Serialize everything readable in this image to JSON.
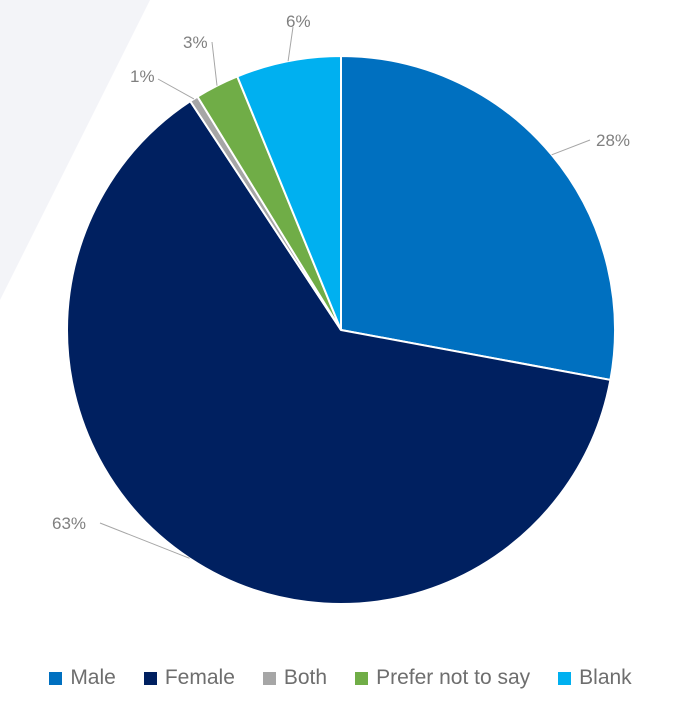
{
  "chart_data": {
    "type": "pie",
    "title": "",
    "slices": [
      {
        "name": "Male",
        "value": 28,
        "label": "28%",
        "color": "#0070C0"
      },
      {
        "name": "Female",
        "value": 63,
        "label": "63%",
        "color": "#002060"
      },
      {
        "name": "Both",
        "value": 0.5,
        "label": "1%",
        "color": "#A6A6A6"
      },
      {
        "name": "Prefer not to say",
        "value": 2.6,
        "label": "3%",
        "color": "#70AD47"
      },
      {
        "name": "Blank",
        "value": 6.2,
        "label": "6%",
        "color": "#00B0F0"
      }
    ],
    "start_angle": "12 o'clock",
    "direction": "clockwise",
    "legend_position": "bottom"
  },
  "legend": {
    "items": [
      {
        "label": "Male",
        "color": "#0070C0"
      },
      {
        "label": "Female",
        "color": "#002060"
      },
      {
        "label": "Both",
        "color": "#A6A6A6"
      },
      {
        "label": "Prefer not to say",
        "color": "#70AD47"
      },
      {
        "label": "Blank",
        "color": "#00B0F0"
      }
    ]
  }
}
